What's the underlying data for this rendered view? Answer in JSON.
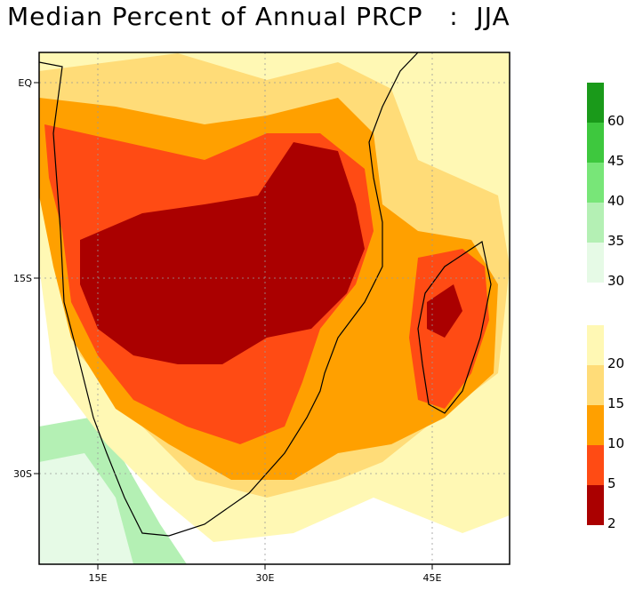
{
  "title": "Median Percent of Annual PRCP   :  JJA",
  "map": {
    "region": "Southern Africa",
    "lat_labels": [
      "EQ",
      "15S",
      "30S"
    ],
    "lon_labels": [
      "15E",
      "30E",
      "45E"
    ],
    "grid": true
  },
  "colorbar": {
    "upper_labels": [
      "60",
      "45",
      "40",
      "35",
      "30"
    ],
    "lower_labels": [
      "20",
      "15",
      "10",
      "5",
      "2"
    ],
    "upper_colors": [
      "#1a9a1a",
      "#3ec83e",
      "#78e678",
      "#b4f0b4",
      "#e6fae6"
    ],
    "lower_colors": [
      "#fff8b4",
      "#ffdc78",
      "#ffa000",
      "#ff4b14",
      "#aa0000"
    ]
  }
}
